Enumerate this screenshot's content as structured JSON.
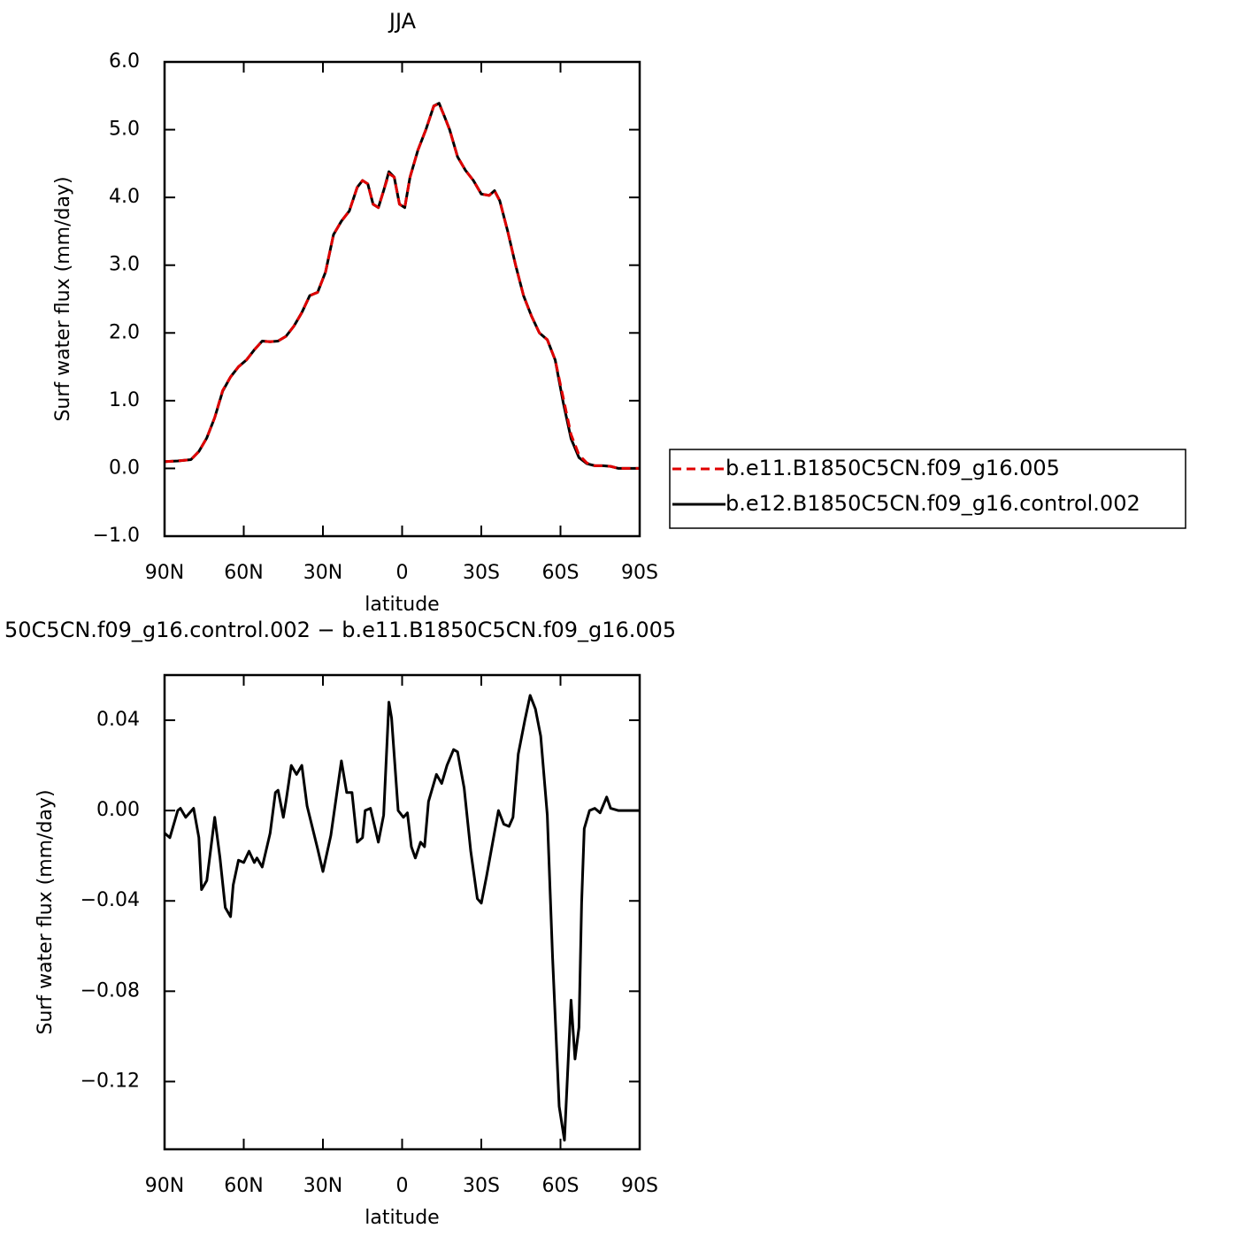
{
  "chart_data": [
    {
      "type": "line",
      "title": "JJA",
      "xlabel": "latitude",
      "ylabel": "Surf water flux (mm/day)",
      "xlim": [
        90,
        -90
      ],
      "xticks": [
        {
          "value": 90,
          "label": "90N"
        },
        {
          "value": 60,
          "label": "60N"
        },
        {
          "value": 30,
          "label": "30N"
        },
        0,
        {
          "value": -30,
          "label": "30S"
        },
        {
          "value": -60,
          "label": "60S"
        },
        {
          "value": -90,
          "label": "90S"
        }
      ],
      "ylim": [
        -1,
        6
      ],
      "yticks": [
        {
          "value": -1,
          "label": "−1.0"
        },
        {
          "value": 0,
          "label": "0.0"
        },
        {
          "value": 1,
          "label": "1.0"
        },
        {
          "value": 2,
          "label": "2.0"
        },
        {
          "value": 3,
          "label": "3.0"
        },
        {
          "value": 4,
          "label": "4.0"
        },
        {
          "value": 5,
          "label": "5.0"
        },
        {
          "value": 6,
          "label": "6.0"
        }
      ],
      "legend": "right",
      "x": [
        90,
        85,
        80,
        77,
        74,
        71,
        68,
        65,
        62,
        59,
        56,
        53,
        50,
        47,
        44,
        41,
        38,
        35,
        32,
        29,
        26,
        23,
        20,
        17,
        15,
        13,
        11,
        9,
        7,
        5,
        3,
        1,
        -1,
        -3,
        -6,
        -9,
        -12,
        -14,
        -16,
        -18,
        -21,
        -24,
        -27,
        -30,
        -33,
        -35,
        -37,
        -40,
        -43,
        -46,
        -49,
        -52,
        -55,
        -58,
        -61,
        -64,
        -67,
        -70,
        -73,
        -76,
        -79,
        -82,
        -85,
        -90
      ],
      "series": [
        {
          "name": "b.e11.B1850C5CN.f09_g16.005",
          "color": "#e00000",
          "dashed": true,
          "values": [
            0.1,
            0.11,
            0.13,
            0.25,
            0.45,
            0.75,
            1.15,
            1.35,
            1.5,
            1.6,
            1.75,
            1.88,
            1.87,
            1.88,
            1.95,
            2.1,
            2.3,
            2.55,
            2.6,
            2.9,
            3.45,
            3.65,
            3.8,
            4.15,
            4.25,
            4.2,
            3.9,
            3.85,
            4.1,
            4.35,
            4.3,
            3.9,
            3.85,
            4.3,
            4.7,
            5.0,
            5.35,
            5.38,
            5.2,
            5.0,
            4.6,
            4.4,
            4.25,
            4.05,
            4.03,
            4.1,
            3.95,
            3.5,
            3.0,
            2.55,
            2.25,
            2.0,
            1.9,
            1.6,
            1.05,
            0.5,
            0.2,
            0.08,
            0.04,
            0.04,
            0.03,
            0.0,
            0.0,
            0.0
          ]
        },
        {
          "name": "b.e12.B1850C5CN.f09_g16.control.002",
          "color": "#000000",
          "dashed": false,
          "values": [
            0.1,
            0.11,
            0.13,
            0.25,
            0.45,
            0.75,
            1.14,
            1.35,
            1.5,
            1.6,
            1.75,
            1.88,
            1.87,
            1.88,
            1.95,
            2.1,
            2.3,
            2.55,
            2.6,
            2.9,
            3.45,
            3.65,
            3.8,
            4.15,
            4.25,
            4.2,
            3.9,
            3.85,
            4.1,
            4.38,
            4.3,
            3.9,
            3.85,
            4.3,
            4.7,
            5.0,
            5.35,
            5.39,
            5.2,
            5.0,
            4.6,
            4.4,
            4.25,
            4.05,
            4.03,
            4.1,
            3.95,
            3.5,
            3.0,
            2.55,
            2.25,
            2.0,
            1.9,
            1.6,
            0.98,
            0.44,
            0.16,
            0.07,
            0.04,
            0.04,
            0.03,
            0.0,
            0.0,
            0.0
          ]
        }
      ]
    },
    {
      "type": "line",
      "title": "50C5CN.f09_g16.control.002 − b.e11.B1850C5CN.f09_g16.005",
      "xlabel": "latitude",
      "ylabel": "Surf water flux (mm/day)",
      "xlim": [
        90,
        -90
      ],
      "xticks": [
        {
          "value": 90,
          "label": "90N"
        },
        {
          "value": 60,
          "label": "60N"
        },
        {
          "value": 30,
          "label": "30N"
        },
        0,
        {
          "value": -30,
          "label": "30S"
        },
        {
          "value": -60,
          "label": "60S"
        },
        {
          "value": -90,
          "label": "90S"
        }
      ],
      "ylim": [
        -0.15,
        0.06
      ],
      "yticks": [
        {
          "value": -0.12,
          "label": "−0.12"
        },
        {
          "value": -0.08,
          "label": "−0.08"
        },
        {
          "value": -0.04,
          "label": "−0.04"
        },
        {
          "value": 0,
          "label": "0.00"
        },
        0.04
      ],
      "x": [
        90,
        88,
        85,
        84,
        82,
        79,
        77,
        76,
        74,
        71,
        69,
        67,
        65,
        64,
        62,
        60,
        58,
        56,
        55,
        53,
        50,
        48,
        47,
        45,
        44,
        42,
        40,
        38,
        36,
        32,
        30,
        27,
        23,
        21,
        19,
        17,
        15,
        14,
        12,
        9,
        7,
        5,
        4,
        1.5,
        -0.5,
        -2,
        -3.5,
        -5,
        -7,
        -8.5,
        -10,
        -13,
        -15,
        -17,
        -19.5,
        -21,
        -23.5,
        -26,
        -28.5,
        -30,
        -32,
        -36.5,
        -38.5,
        -40.5,
        -42,
        -44,
        -46.5,
        -48.5,
        -50.5,
        -52.5,
        -55,
        -57,
        -59.5,
        -61.5,
        -64,
        -65.5,
        -67,
        -68,
        -69,
        -71,
        -73,
        -75,
        -77.5,
        -79,
        -82,
        -90
      ],
      "series": [
        {
          "color": "#000000",
          "dashed": false,
          "values": [
            -0.01,
            -0.012,
            0.0,
            0.001,
            -0.003,
            0.001,
            -0.012,
            -0.035,
            -0.031,
            -0.003,
            -0.021,
            -0.043,
            -0.047,
            -0.033,
            -0.022,
            -0.023,
            -0.018,
            -0.023,
            -0.021,
            -0.025,
            -0.01,
            0.008,
            0.009,
            -0.003,
            0.004,
            0.02,
            0.016,
            0.02,
            0.002,
            -0.017,
            -0.027,
            -0.011,
            0.022,
            0.008,
            0.008,
            -0.014,
            -0.012,
            0.0,
            0.001,
            -0.014,
            -0.002,
            0.048,
            0.041,
            0.0,
            -0.003,
            -0.001,
            -0.016,
            -0.021,
            -0.014,
            -0.016,
            0.004,
            0.016,
            0.012,
            0.02,
            0.027,
            0.026,
            0.01,
            -0.018,
            -0.039,
            -0.041,
            -0.029,
            0.0,
            -0.006,
            -0.007,
            -0.003,
            0.025,
            0.04,
            0.051,
            0.045,
            0.033,
            -0.002,
            -0.065,
            -0.131,
            -0.146,
            -0.084,
            -0.11,
            -0.096,
            -0.041,
            -0.008,
            0.0,
            0.001,
            -0.001,
            0.006,
            0.001,
            0.0,
            0.0
          ]
        }
      ]
    }
  ]
}
